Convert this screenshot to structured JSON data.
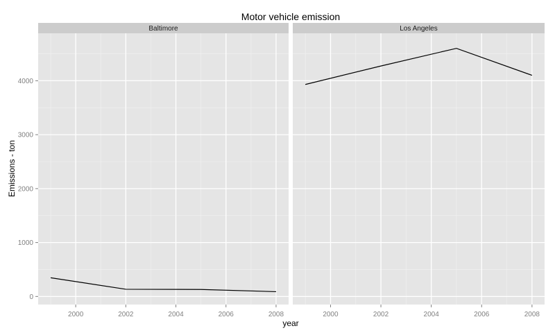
{
  "chart_data": {
    "type": "line",
    "title": "Motor vehicle emission",
    "xlabel": "year",
    "ylabel": "Emissions - ton",
    "xlim": [
      1998.5,
      2008.5
    ],
    "ylim": [
      -150,
      4880
    ],
    "x_ticks": [
      2000,
      2002,
      2004,
      2006,
      2008
    ],
    "x_tick_labels": [
      "2000",
      "2002",
      "2004",
      "2006",
      "2008"
    ],
    "y_ticks": [
      0,
      1000,
      2000,
      3000,
      4000
    ],
    "y_tick_labels": [
      "0",
      "1000",
      "2000",
      "3000",
      "4000"
    ],
    "grid": true,
    "legend": "none",
    "line_color": "#000000",
    "panel_background": "#e5e5e5",
    "strip_background": "#cccccc",
    "facets": [
      {
        "name": "Baltimore",
        "x": [
          1999,
          2002,
          2005,
          2008
        ],
        "values": [
          347,
          134,
          130,
          89
        ]
      },
      {
        "name": "Los Angeles",
        "x": [
          1999,
          2002,
          2005,
          2008
        ],
        "values": [
          3931,
          4274,
          4601,
          4101
        ]
      }
    ]
  }
}
